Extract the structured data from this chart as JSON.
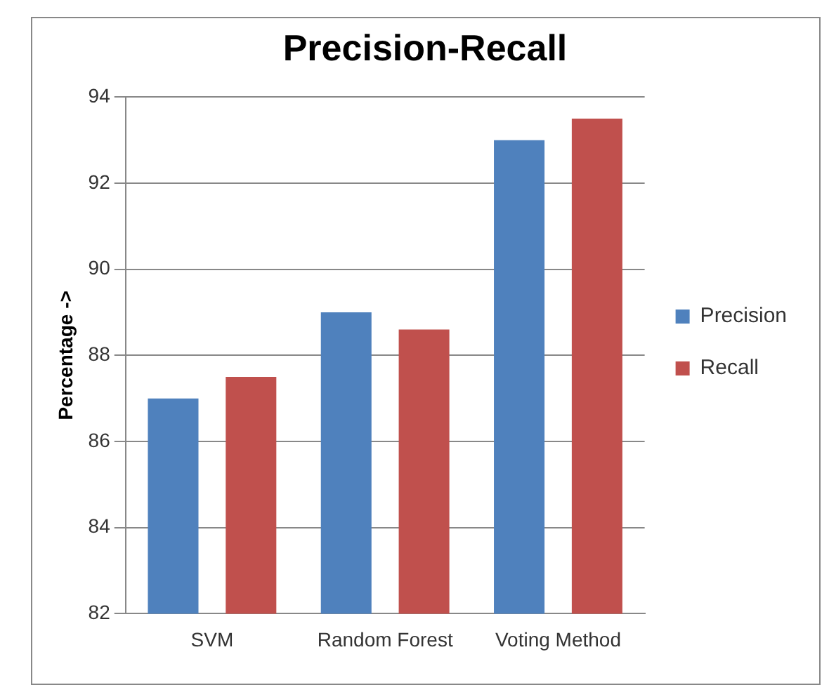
{
  "chart_data": {
    "type": "bar",
    "title": "Precision-Recall",
    "ylabel": "Percentage ->",
    "categories": [
      "SVM",
      "Random Forest",
      "Voting Method"
    ],
    "series": [
      {
        "name": "Precision",
        "color": "#4f81bd",
        "values": [
          87,
          89,
          93
        ]
      },
      {
        "name": "Recall",
        "color": "#c0504d",
        "values": [
          87.5,
          88.6,
          93.5
        ]
      }
    ],
    "ylim": [
      82,
      94
    ],
    "yticks": [
      82,
      84,
      86,
      88,
      90,
      92,
      94
    ],
    "grid": "y",
    "legend": "right"
  }
}
